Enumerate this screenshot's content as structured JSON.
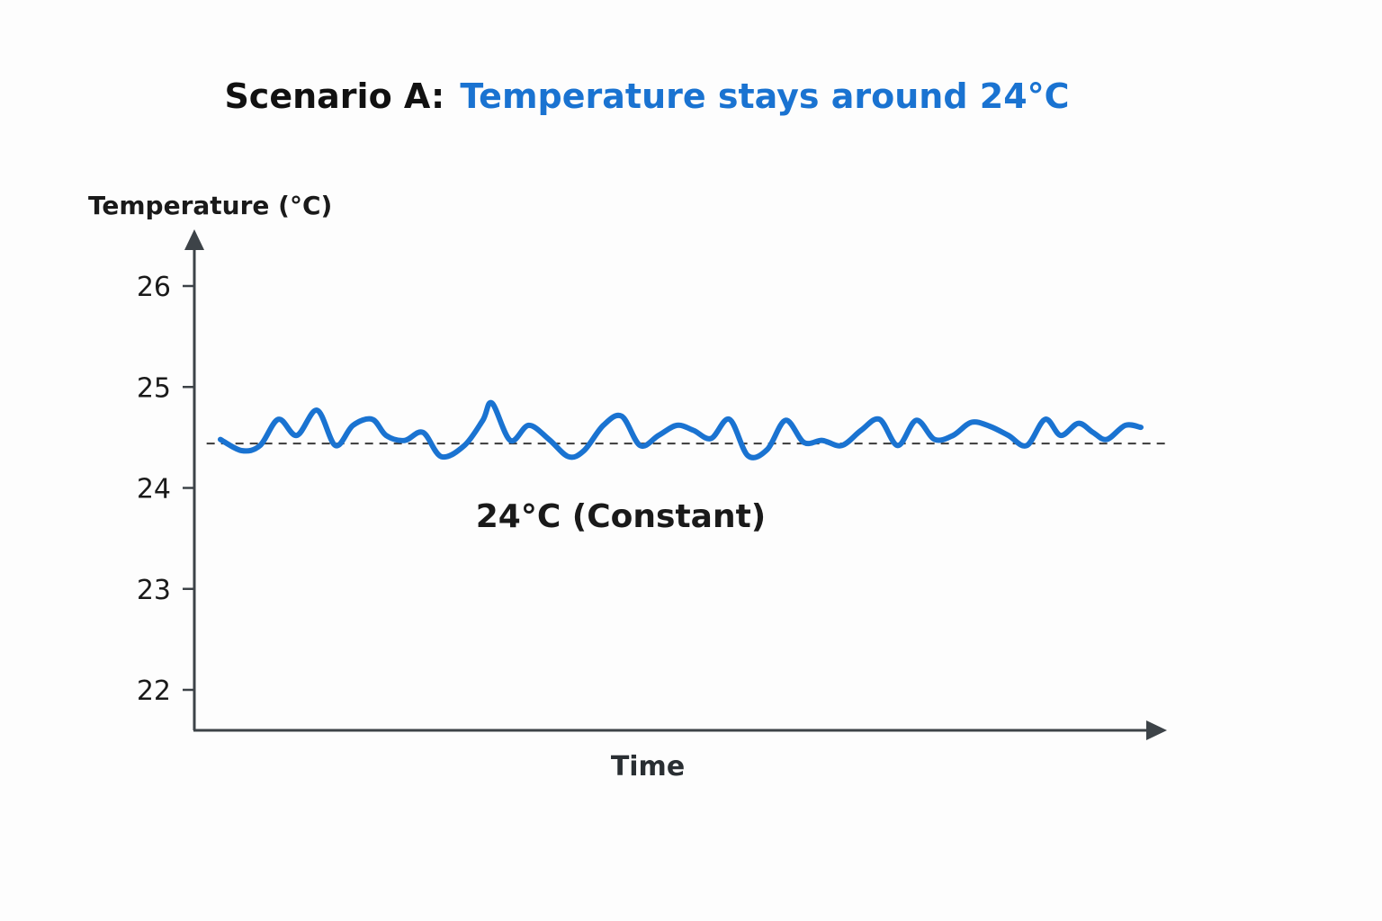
{
  "chart_data": {
    "type": "line",
    "title_prefix": "Scenario A:",
    "title": "Temperature stays around 24°C",
    "ylabel": "Temperature (°C)",
    "xlabel": "Time",
    "ylim": [
      21.6,
      26.6
    ],
    "yticks": [
      22,
      23,
      24,
      25,
      26
    ],
    "ytick_labels": [
      "22",
      "23",
      "24",
      "25",
      "26"
    ],
    "xlim": [
      0,
      100
    ],
    "grid": false,
    "reference_line": {
      "y": 24.44,
      "style": "dashed",
      "x_start": -1.5,
      "x_end": 100
    },
    "annotation": {
      "text": "24°C (Constant)",
      "x": 43.5,
      "y": 23.72
    },
    "series": [
      {
        "name": "Temperature",
        "x": [
          0,
          2.3,
          4.3,
          6.3,
          8.3,
          10.5,
          12.5,
          14.4,
          16.5,
          18.0,
          20.0,
          22.0,
          24.0,
          26.5,
          28.5,
          29.5,
          31.5,
          33.5,
          35.7,
          37.8,
          39.5,
          41.6,
          43.6,
          45.6,
          47.6,
          49.6,
          51.4,
          53.3,
          55.3,
          57.3,
          59.4,
          61.4,
          63.4,
          65.4,
          67.5,
          69.6,
          71.6,
          73.6,
          75.6,
          77.6,
          79.6,
          81.6,
          83.6,
          85.6,
          87.6,
          89.6,
          91.3,
          93.2,
          94.8,
          96.3,
          98.3,
          100
        ],
        "values": [
          24.48,
          24.37,
          24.42,
          24.68,
          24.52,
          24.77,
          24.42,
          24.62,
          24.68,
          24.52,
          24.47,
          24.55,
          24.31,
          24.42,
          24.67,
          24.84,
          24.47,
          24.62,
          24.48,
          24.31,
          24.37,
          24.62,
          24.71,
          24.42,
          24.52,
          24.62,
          24.57,
          24.49,
          24.68,
          24.32,
          24.38,
          24.67,
          24.45,
          24.47,
          24.42,
          24.57,
          24.68,
          24.42,
          24.67,
          24.48,
          24.52,
          24.65,
          24.61,
          24.52,
          24.42,
          24.68,
          24.52,
          24.64,
          24.55,
          24.48,
          24.62,
          24.6
        ],
        "color": "#1a73d1"
      }
    ],
    "colors": {
      "accent": "#1a73d1",
      "axis": "#3d4348",
      "text": "#1a1a1a"
    }
  }
}
